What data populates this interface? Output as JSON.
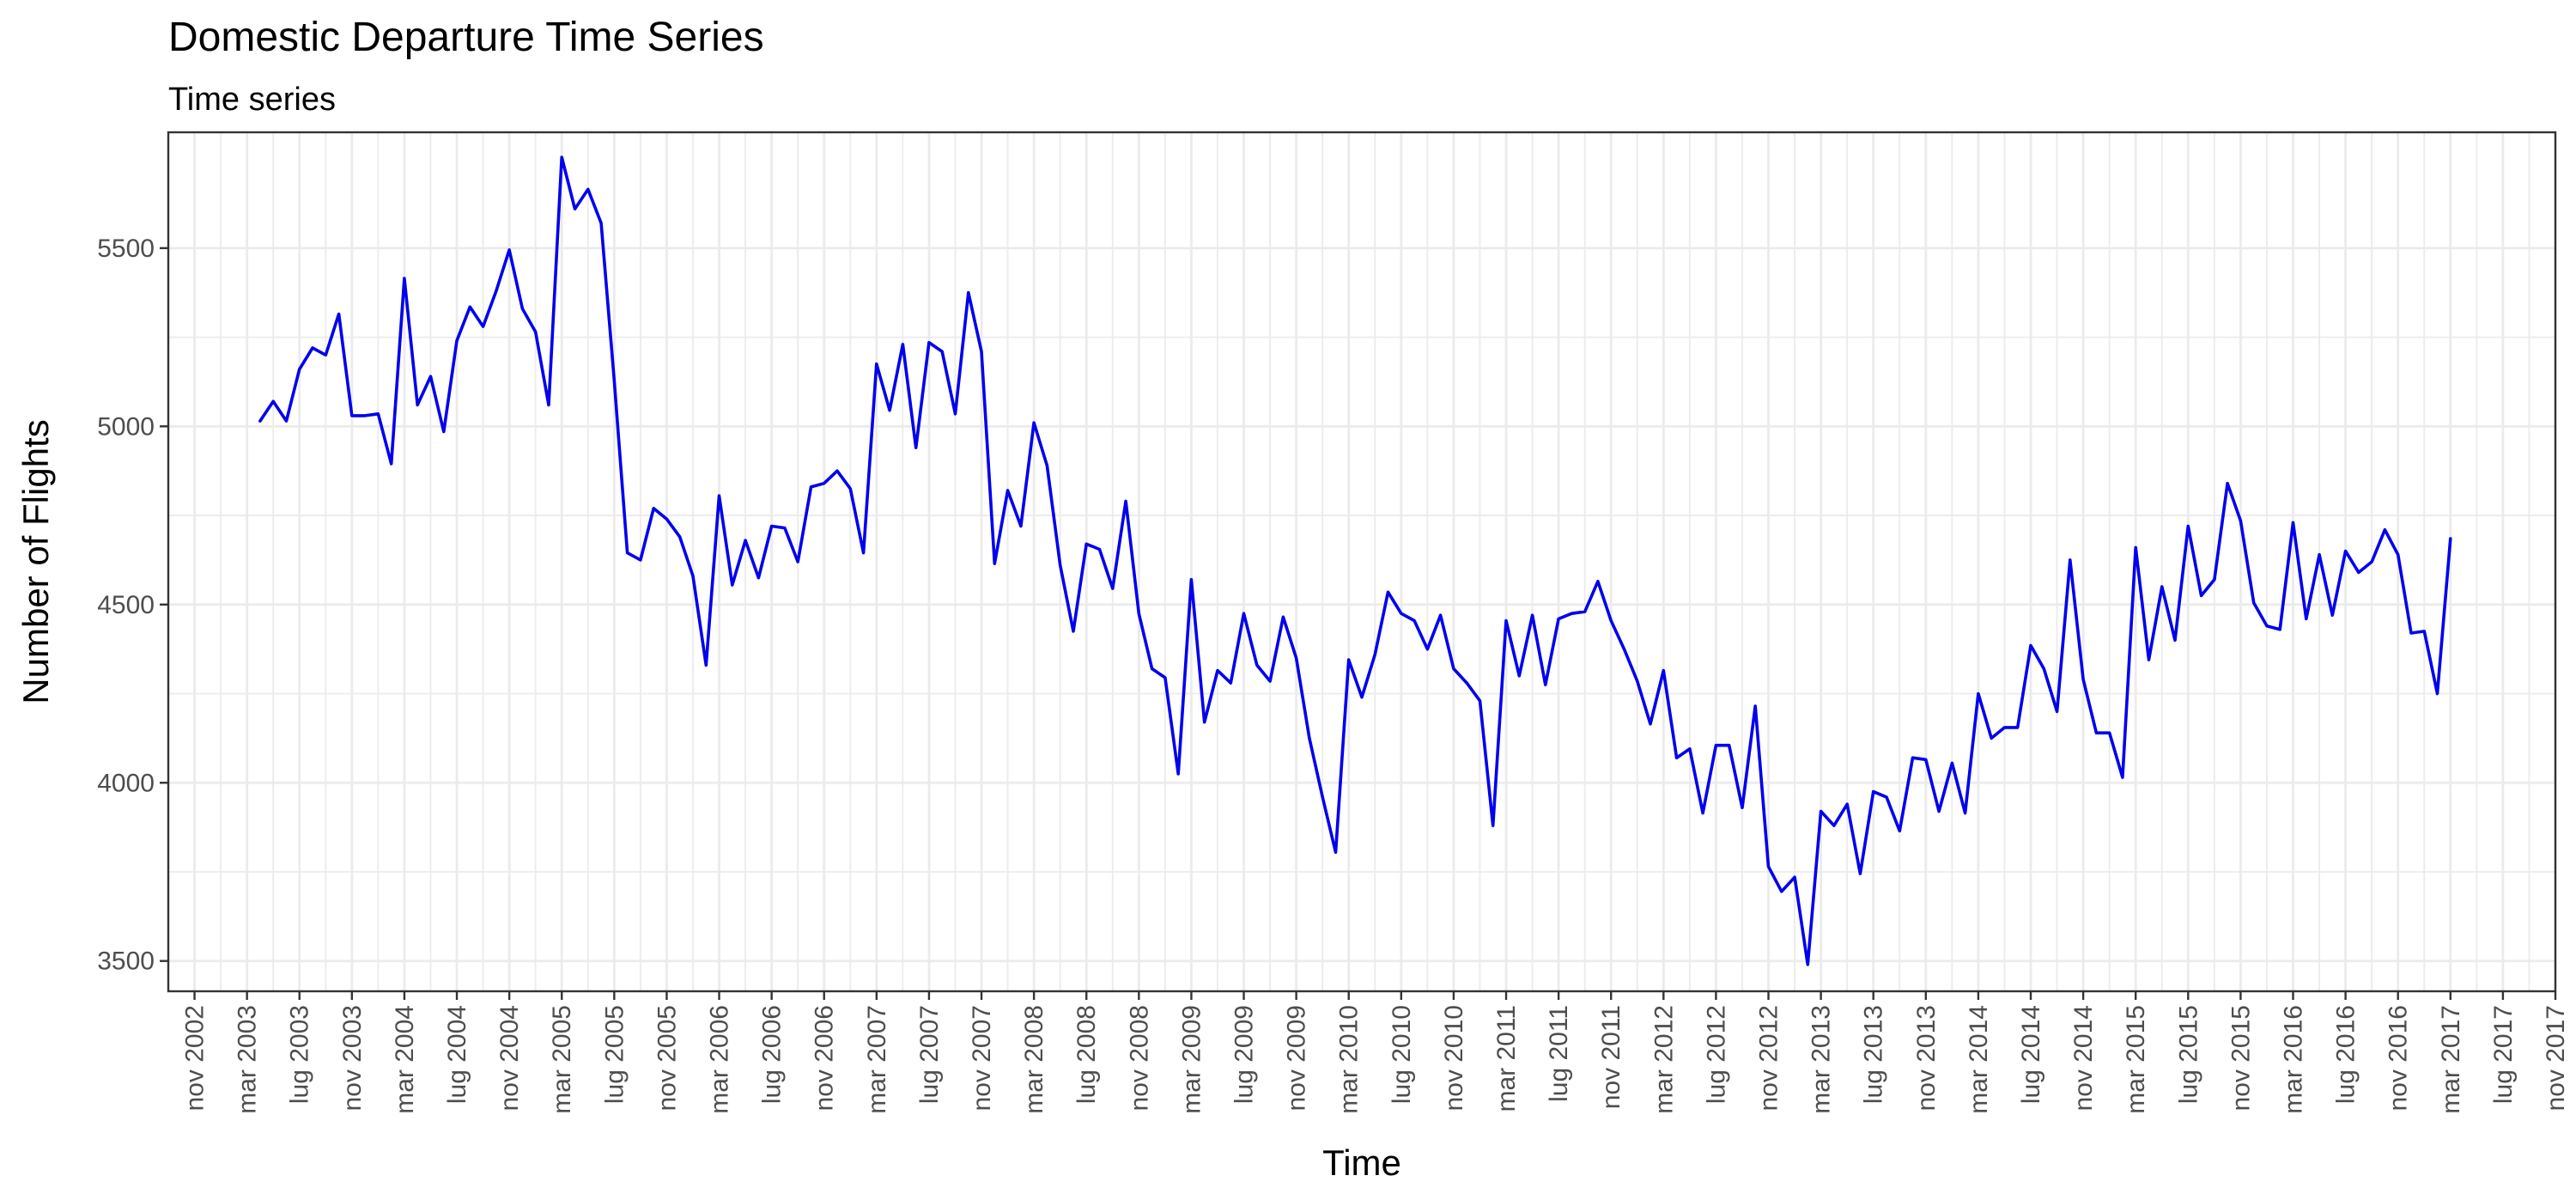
{
  "chart_data": {
    "type": "line",
    "title": "Domestic Departure Time Series",
    "subtitle": "Time series",
    "xlabel": "Time",
    "ylabel": "Number of Flights",
    "grid": true,
    "legend": "none",
    "colors": {
      "series": "#0000ee",
      "grid": "#ebebeb",
      "border": "#333333",
      "tick_text": "#4d4d4d"
    },
    "x_range": [
      "2002-09",
      "2017-11"
    ],
    "ylim": [
      3415,
      5825
    ],
    "y_ticks": [
      3500,
      4000,
      4500,
      5000,
      5500
    ],
    "x_tick_dates": [
      "2002-11",
      "2003-03",
      "2003-07",
      "2003-11",
      "2004-03",
      "2004-07",
      "2004-11",
      "2005-03",
      "2005-07",
      "2005-11",
      "2006-03",
      "2006-07",
      "2006-11",
      "2007-03",
      "2007-07",
      "2007-11",
      "2008-03",
      "2008-07",
      "2008-11",
      "2009-03",
      "2009-07",
      "2009-11",
      "2010-03",
      "2010-07",
      "2010-11",
      "2011-03",
      "2011-07",
      "2011-11",
      "2012-03",
      "2012-07",
      "2012-11",
      "2013-03",
      "2013-07",
      "2013-11",
      "2014-03",
      "2014-07",
      "2014-11",
      "2015-03",
      "2015-07",
      "2015-11",
      "2016-03",
      "2016-07",
      "2016-11",
      "2017-03",
      "2017-07",
      "2017-11"
    ],
    "x_tick_labels": [
      "nov 2002",
      "mar 2003",
      "lug 2003",
      "nov 2003",
      "mar 2004",
      "lug 2004",
      "nov 2004",
      "mar 2005",
      "lug 2005",
      "nov 2005",
      "mar 2006",
      "lug 2006",
      "nov 2006",
      "mar 2007",
      "lug 2007",
      "nov 2007",
      "mar 2008",
      "lug 2008",
      "nov 2008",
      "mar 2009",
      "lug 2009",
      "nov 2009",
      "mar 2010",
      "lug 2010",
      "nov 2010",
      "mar 2011",
      "lug 2011",
      "nov 2011",
      "mar 2012",
      "lug 2012",
      "nov 2012",
      "mar 2013",
      "lug 2013",
      "nov 2013",
      "mar 2014",
      "lug 2014",
      "nov 2014",
      "mar 2015",
      "lug 2015",
      "nov 2015",
      "mar 2016",
      "lug 2016",
      "nov 2016",
      "mar 2017",
      "lug 2017",
      "nov 2017"
    ],
    "series": [
      {
        "start": "2003-04",
        "frequency": "monthly",
        "values": [
          5015,
          5070,
          5015,
          5160,
          5220,
          5200,
          5315,
          5030,
          5030,
          5035,
          4895,
          5415,
          5060,
          5140,
          4985,
          5240,
          5335,
          5280,
          5380,
          5495,
          5330,
          5265,
          5060,
          5755,
          5610,
          5665,
          5570,
          5130,
          4645,
          4625,
          4770,
          4740,
          4690,
          4580,
          4330,
          4805,
          4555,
          4680,
          4575,
          4720,
          4715,
          4620,
          4830,
          4840,
          4875,
          4825,
          4645,
          5175,
          5045,
          5230,
          4940,
          5235,
          5210,
          5035,
          5375,
          5210,
          4615,
          4820,
          4720,
          5010,
          4890,
          4610,
          4425,
          4670,
          4655,
          4545,
          4790,
          4475,
          4320,
          4295,
          4025,
          4570,
          4170,
          4315,
          4280,
          4475,
          4330,
          4285,
          4465,
          4350,
          4125,
          3960,
          3805,
          4345,
          4240,
          4360,
          4535,
          4475,
          4455,
          4375,
          4470,
          4320,
          4280,
          4230,
          3880,
          4455,
          4300,
          4470,
          4275,
          4460,
          4475,
          4480,
          4565,
          4455,
          4375,
          4285,
          4165,
          4315,
          4070,
          4095,
          3915,
          4105,
          4105,
          3930,
          4215,
          3765,
          3695,
          3735,
          3490,
          3920,
          3880,
          3940,
          3745,
          3975,
          3960,
          3865,
          4070,
          4065,
          3920,
          4055,
          3915,
          4250,
          4125,
          4155,
          4155,
          4385,
          4320,
          4200,
          4625,
          4290,
          4140,
          4140,
          4015,
          4660,
          4345,
          4550,
          4400,
          4720,
          4525,
          4570,
          4840,
          4735,
          4505,
          4440,
          4430,
          4730,
          4460,
          4640,
          4470,
          4650,
          4590,
          4620,
          4710,
          4640,
          4420,
          4425,
          4250,
          4685
        ]
      }
    ]
  }
}
